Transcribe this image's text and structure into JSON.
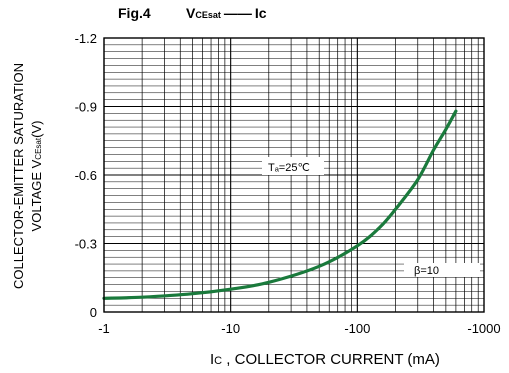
{
  "figure": {
    "fig_label": "Fig.4",
    "title_v": "V",
    "title_v_sub": "CEsat",
    "title_dash": "——",
    "title_ic": "Ic"
  },
  "annotations": {
    "temperature": "Tₐ=25℃",
    "beta": "β=10"
  },
  "chart_data": {
    "type": "line",
    "xscale": "log",
    "x_ticks": [
      -1,
      -10,
      -100,
      -1000
    ],
    "x_tick_labels": [
      "-1",
      "-10",
      "-100",
      "-1000"
    ],
    "y_ticks": [
      0,
      -0.3,
      -0.6,
      -0.9,
      -1.2
    ],
    "y_tick_labels": [
      "0",
      "-0.3",
      "-0.6",
      "-0.9",
      "-1.2"
    ],
    "xlim": [
      -1,
      -1000
    ],
    "ylim": [
      0,
      -1.2
    ],
    "xlabel": {
      "i": "I",
      "sub": "C",
      "rest": " , COLLECTOR CURRENT (mA)"
    },
    "ylabel": {
      "line1": "COLLECTOR-EMITTER SATURATION",
      "line2_pre": "VOLTAGE V",
      "line2_sub": "CEsat",
      "line2_post": "(V)"
    },
    "grid": true,
    "line_color": "#1a7a3c",
    "series": [
      {
        "x": [
          -1,
          -2,
          -5,
          -10,
          -20,
          -50,
          -100,
          -150,
          -200,
          -300,
          -400,
          -500,
          -600
        ],
        "y": [
          -0.06,
          -0.065,
          -0.08,
          -0.1,
          -0.13,
          -0.2,
          -0.29,
          -0.37,
          -0.45,
          -0.58,
          -0.71,
          -0.8,
          -0.88
        ]
      }
    ]
  }
}
